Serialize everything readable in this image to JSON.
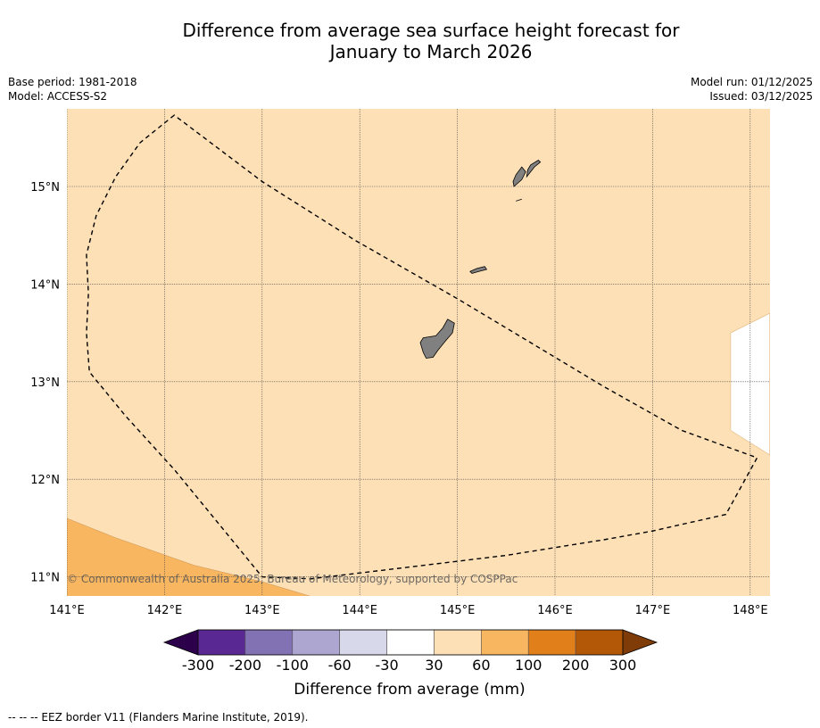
{
  "title_line1": "Difference from average sea surface height forecast for",
  "title_line2": "January to March 2026",
  "meta_left": [
    "Base period: 1981-2018",
    "Model: ACCESS-S2"
  ],
  "meta_right": [
    "Model run: 01/12/2025",
    "Issued: 03/12/2025"
  ],
  "copyright": "© Commonwealth of Australia 2025, Bureau of Meteorology, supported by COSPPac",
  "footer": "--  --  -- EEZ border V11 (Flanders Marine Institute, 2019).",
  "lon_labels": [
    "141°E",
    "142°E",
    "143°E",
    "144°E",
    "145°E",
    "146°E",
    "147°E",
    "148°E"
  ],
  "lat_labels": [
    "15°N",
    "14°N",
    "13°N",
    "12°N",
    "11°N"
  ],
  "map": {
    "lon_range": [
      141.0,
      148.2
    ],
    "lat_range": [
      10.8,
      15.8
    ],
    "background_band": "30 to 60",
    "lower_left_band": "60 to 100",
    "eez_border": [
      [
        142.1,
        15.73
      ],
      [
        141.75,
        15.45
      ],
      [
        141.5,
        15.1
      ],
      [
        141.3,
        14.7
      ],
      [
        141.2,
        14.3
      ],
      [
        141.22,
        13.9
      ],
      [
        141.2,
        13.5
      ],
      [
        141.23,
        13.1
      ],
      [
        141.6,
        12.65
      ],
      [
        142.1,
        12.1
      ],
      [
        142.55,
        11.55
      ],
      [
        143.0,
        11.0
      ],
      [
        143.5,
        10.98
      ],
      [
        144.5,
        11.1
      ],
      [
        145.5,
        11.22
      ],
      [
        146.5,
        11.38
      ],
      [
        147.0,
        11.47
      ],
      [
        147.75,
        11.64
      ],
      [
        148.07,
        12.22
      ],
      [
        147.3,
        12.5
      ],
      [
        146.5,
        12.95
      ],
      [
        145.5,
        13.55
      ],
      [
        145.0,
        13.85
      ],
      [
        143.95,
        14.45
      ],
      [
        143.0,
        15.05
      ]
    ],
    "white_region": [
      [
        148.2,
        13.7
      ],
      [
        147.8,
        13.5
      ],
      [
        147.8,
        12.5
      ],
      [
        148.2,
        12.25
      ]
    ],
    "lower_left_region": [
      [
        141.0,
        11.6
      ],
      [
        141.5,
        11.4
      ],
      [
        142.3,
        11.12
      ],
      [
        143.0,
        10.95
      ],
      [
        143.5,
        10.8
      ],
      [
        141.0,
        10.8
      ]
    ],
    "islands": [
      [
        [
          144.65,
          13.45
        ],
        [
          144.78,
          13.47
        ],
        [
          144.85,
          13.55
        ],
        [
          144.9,
          13.64
        ],
        [
          144.97,
          13.6
        ],
        [
          144.95,
          13.5
        ],
        [
          144.88,
          13.42
        ],
        [
          144.8,
          13.32
        ],
        [
          144.75,
          13.25
        ],
        [
          144.68,
          13.24
        ],
        [
          144.65,
          13.3
        ],
        [
          144.62,
          13.4
        ]
      ],
      [
        [
          145.13,
          14.13
        ],
        [
          145.2,
          14.16
        ],
        [
          145.28,
          14.18
        ],
        [
          145.3,
          14.15
        ],
        [
          145.22,
          14.13
        ],
        [
          145.15,
          14.11
        ]
      ],
      [
        [
          145.6,
          14.85
        ],
        [
          145.66,
          14.87
        ]
      ],
      [
        [
          145.58,
          15.0
        ],
        [
          145.66,
          15.07
        ],
        [
          145.7,
          15.15
        ],
        [
          145.66,
          15.2
        ],
        [
          145.6,
          15.12
        ],
        [
          145.57,
          15.05
        ]
      ],
      [
        [
          145.71,
          15.1
        ],
        [
          145.79,
          15.2
        ],
        [
          145.85,
          15.25
        ],
        [
          145.83,
          15.27
        ],
        [
          145.75,
          15.22
        ],
        [
          145.72,
          15.17
        ]
      ]
    ]
  },
  "colorbar": {
    "title": "Difference from average (mm)",
    "tick_labels": [
      "-300",
      "-200",
      "-100",
      "-60",
      "-30",
      "30",
      "60",
      "100",
      "200",
      "300"
    ],
    "colors": [
      "#592893",
      "#8272b3",
      "#ada6d0",
      "#d7d8ea",
      "#ffffff",
      "#fde0b6",
      "#f9b660",
      "#e1801b",
      "#b35807"
    ],
    "under_color": "#2d004b",
    "over_color": "#7f3b08"
  },
  "colors": {
    "band_30_60": "#fde0b6",
    "band_60_100": "#f9b660",
    "land": "#808080",
    "grid": "#444444"
  }
}
